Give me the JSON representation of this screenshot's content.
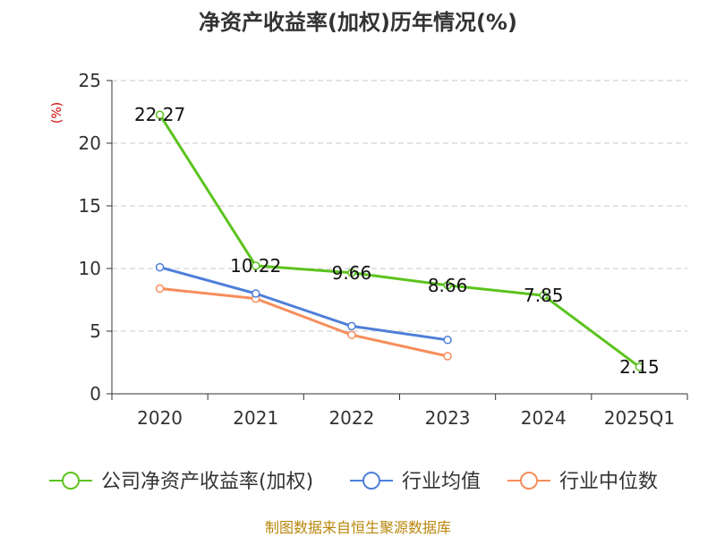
{
  "chart_data": {
    "type": "line",
    "title": "净资产收益率(加权)历年情况(%)",
    "ylabel": "(%)",
    "xlabel": "",
    "categories": [
      "2020",
      "2021",
      "2022",
      "2023",
      "2024",
      "2025Q1"
    ],
    "ylim": [
      0,
      25
    ],
    "yticks": [
      0,
      5,
      10,
      15,
      20,
      25
    ],
    "grid": true,
    "legend_position": "bottom",
    "series": [
      {
        "name": "公司净资产收益率(加权)",
        "color": "#5cc31e",
        "values": [
          22.27,
          10.22,
          9.66,
          8.66,
          7.85,
          2.15
        ],
        "labels": [
          "22.27",
          "10.22",
          "9.66",
          "8.66",
          "7.85",
          "2.15"
        ]
      },
      {
        "name": "行业均值",
        "color": "#4e7fd9",
        "values": [
          10.1,
          8.0,
          5.4,
          4.3,
          null,
          null
        ]
      },
      {
        "name": "行业中位数",
        "color": "#f68d5b",
        "values": [
          8.4,
          7.6,
          4.7,
          3.0,
          null,
          null
        ]
      }
    ]
  },
  "footer": {
    "source": "制图数据来自恒生聚源数据库"
  }
}
